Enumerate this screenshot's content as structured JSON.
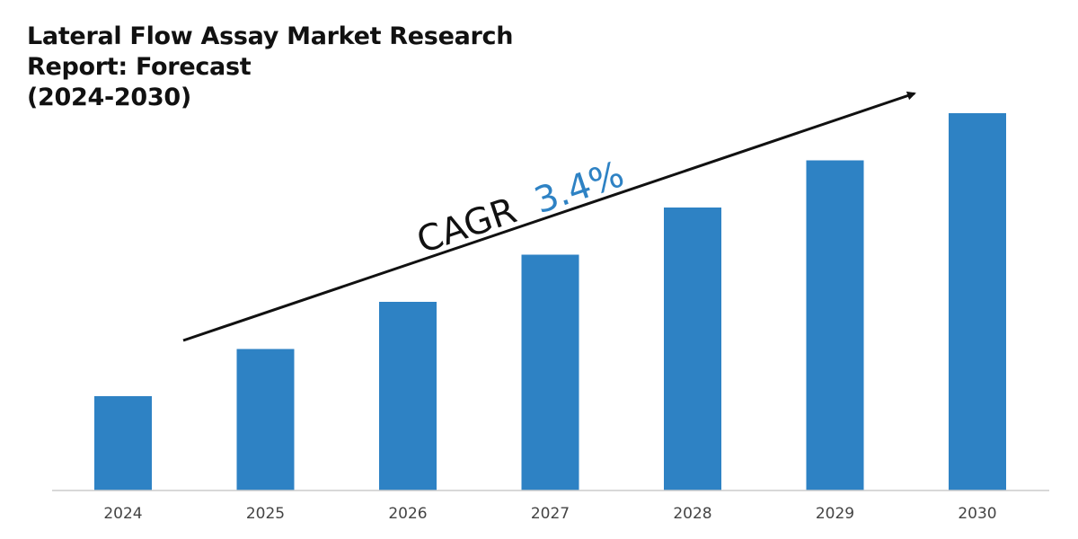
{
  "chart_data": {
    "type": "bar",
    "title_lines": [
      "Lateral Flow Assay Market Research",
      "Report: Forecast",
      "(2024-2030)"
    ],
    "categories": [
      "2024",
      "2025",
      "2026",
      "2027",
      "2028",
      "2029",
      "2030"
    ],
    "values": [
      1.0,
      1.5,
      2.0,
      2.5,
      3.0,
      3.5,
      4.0
    ],
    "ylim": [
      0,
      4.0
    ],
    "grid": false,
    "legend": "none",
    "annotation": {
      "prefix": "CAGR",
      "value": "3.4%"
    },
    "colors": {
      "bar": "#2E82C4",
      "cagr_value": "#2E82C4",
      "arrow": "#111111",
      "axis": "#cccccc",
      "tick_label": "#444444"
    }
  }
}
